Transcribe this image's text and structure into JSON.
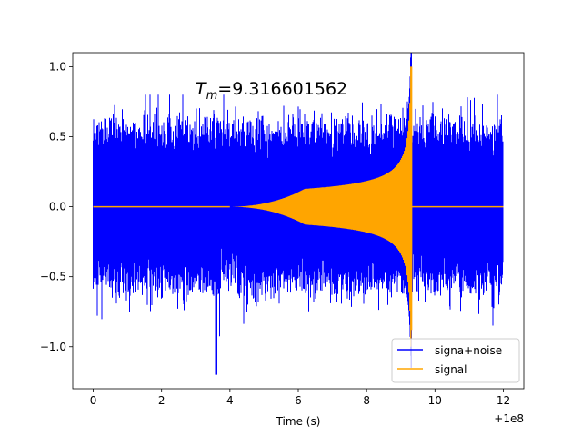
{
  "chart_data": {
    "type": "line",
    "title": "T_m=9.316601562",
    "title_main": "T",
    "title_sub": "m",
    "title_rest": "=9.316601562",
    "xlabel": "Time (s)",
    "ylabel": "",
    "x_offset_label": "+1e8",
    "xlim": [
      -0.6,
      12.6
    ],
    "ylim": [
      -1.3,
      1.1
    ],
    "x_ticks": [
      0,
      2,
      4,
      6,
      8,
      10,
      12
    ],
    "x_tick_labels": [
      "0",
      "2",
      "4",
      "6",
      "8",
      "10",
      "12"
    ],
    "y_ticks": [
      -1.0,
      -0.5,
      0.0,
      0.5,
      1.0
    ],
    "y_tick_labels": [
      "−1.0",
      "−0.5",
      "0.0",
      "0.5",
      "1.0"
    ],
    "grid": false,
    "legend_position": "lower-right",
    "merger_time": 9.3166,
    "series": [
      {
        "name": "signa+noise",
        "color": "#0000ff",
        "x": [
          0,
          12
        ],
        "envelope": "noise amplitude about 0.5, peaks near 0.75, lowest dip -1.2 near x=3.6"
      },
      {
        "name": "signal",
        "color": "#ffa500",
        "x": [
          0,
          12
        ],
        "chirp_start": 4.0,
        "chirp_amp_at_merger": 1.0,
        "envelope": "zero until ~4, grows to ~0.25 by 8, rises sharply to 1.0 at 9.3166, zero after"
      }
    ]
  }
}
